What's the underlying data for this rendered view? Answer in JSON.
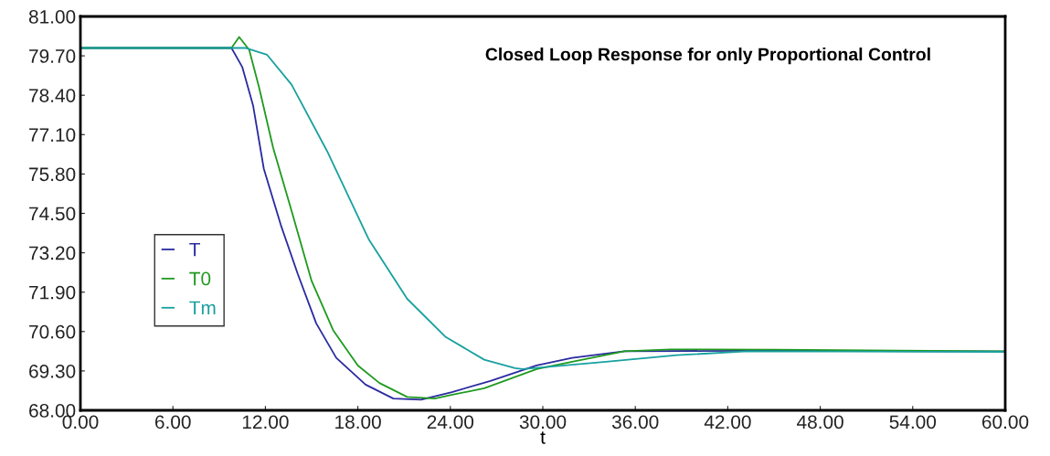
{
  "chart_data": {
    "type": "line",
    "title": "Closed Loop Response for only Proportional Control",
    "xlabel": "t",
    "xlim": [
      0,
      60
    ],
    "xticks": [
      {
        "value": 0,
        "label": "0.00"
      },
      {
        "value": 6,
        "label": "6.00"
      },
      {
        "value": 12,
        "label": "12.00"
      },
      {
        "value": 18,
        "label": "18.00"
      },
      {
        "value": 24,
        "label": "24.00"
      },
      {
        "value": 30,
        "label": "30.00"
      },
      {
        "value": 36,
        "label": "36.00"
      },
      {
        "value": 42,
        "label": "42.00"
      },
      {
        "value": 48,
        "label": "48.00"
      },
      {
        "value": 54,
        "label": "54.00"
      },
      {
        "value": 60,
        "label": "60.00"
      }
    ],
    "ylim": [
      68,
      81
    ],
    "yticks": [
      {
        "value": 68,
        "label": "68.00"
      },
      {
        "value": 69.3,
        "label": "69.30"
      },
      {
        "value": 70.6,
        "label": "70.60"
      },
      {
        "value": 71.9,
        "label": "71.90"
      },
      {
        "value": 73.2,
        "label": "73.20"
      },
      {
        "value": 74.5,
        "label": "74.50"
      },
      {
        "value": 75.8,
        "label": "75.80"
      },
      {
        "value": 77.1,
        "label": "77.10"
      },
      {
        "value": 78.4,
        "label": "78.40"
      },
      {
        "value": 79.7,
        "label": "79.70"
      },
      {
        "value": 81,
        "label": "81.00"
      }
    ],
    "grid": false,
    "legend": "left",
    "marker": "none",
    "line_style": "solid",
    "series": [
      {
        "name": "T",
        "color": "#2a2aa0",
        "x": [
          0,
          9.8,
          10.5,
          11.2,
          11.9,
          13.0,
          14.1,
          15.3,
          16.6,
          18.5,
          20.3,
          22.1,
          24.1,
          26.6,
          29.6,
          31.9,
          35.3,
          45,
          60
        ],
        "values": [
          79.96,
          79.96,
          79.33,
          78.07,
          75.97,
          74.12,
          72.5,
          70.87,
          69.73,
          68.85,
          68.39,
          68.35,
          68.6,
          68.97,
          69.48,
          69.73,
          69.95,
          69.97,
          69.94
        ]
      },
      {
        "name": "T0",
        "color": "#1f9a1f",
        "x": [
          0,
          9.8,
          10.3,
          10.95,
          11.6,
          12.5,
          13.7,
          15.0,
          16.4,
          18.0,
          19.4,
          21.2,
          23.0,
          24.0,
          26.2,
          29.6,
          31.9,
          35.3,
          38.3,
          45,
          60
        ],
        "values": [
          79.96,
          79.96,
          80.32,
          79.9,
          78.64,
          76.67,
          74.58,
          72.27,
          70.64,
          69.48,
          68.9,
          68.44,
          68.39,
          68.5,
          68.73,
          69.36,
          69.6,
          69.95,
          70.01,
          70.0,
          69.95
        ]
      },
      {
        "name": "Tm",
        "color": "#18a0a0",
        "x": [
          0,
          10.7,
          12.1,
          13.7,
          16.0,
          18.7,
          21.2,
          23.7,
          26.2,
          28.2,
          28.7,
          34.1,
          38.7,
          43.3,
          60
        ],
        "values": [
          79.96,
          79.96,
          79.74,
          78.75,
          76.56,
          73.65,
          71.68,
          70.42,
          69.67,
          69.39,
          69.36,
          69.6,
          69.82,
          69.95,
          69.93
        ]
      }
    ]
  }
}
